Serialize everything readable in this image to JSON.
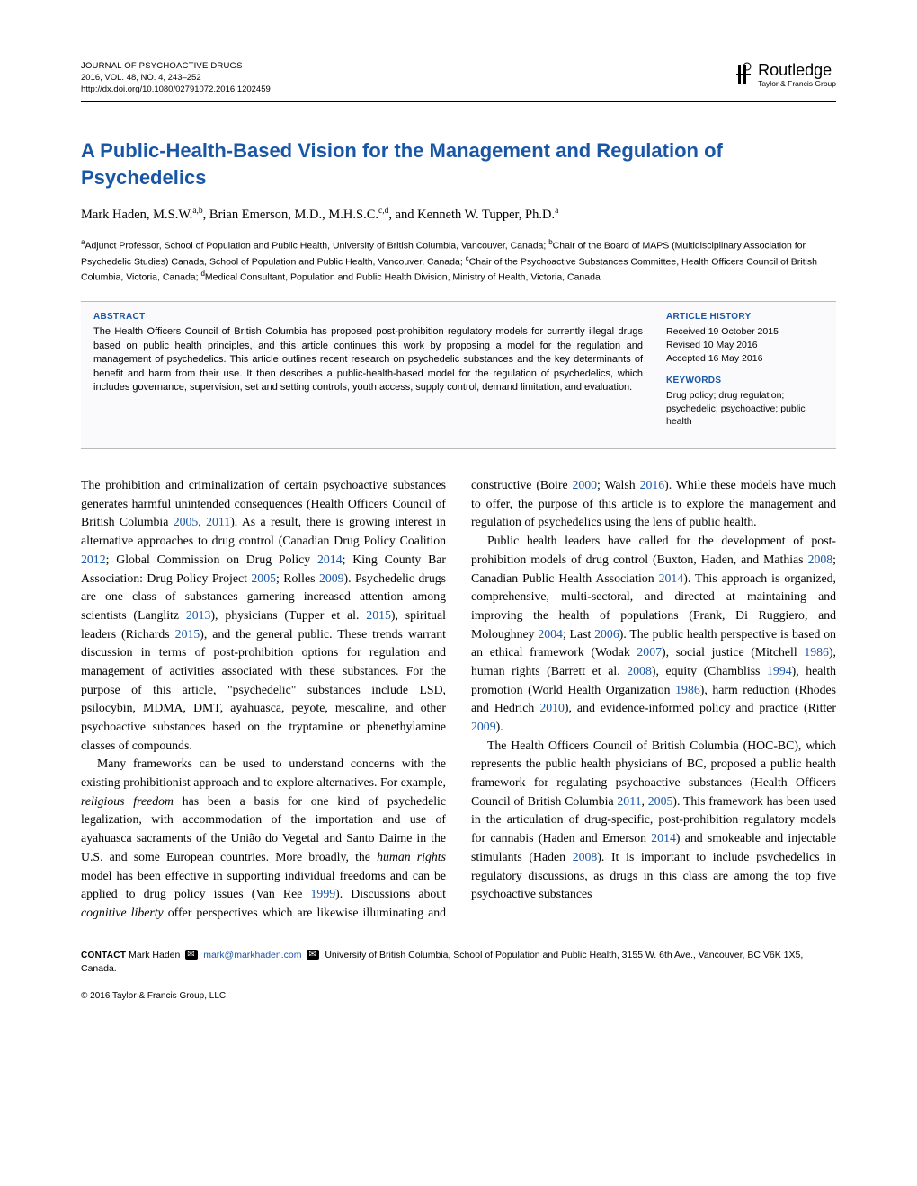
{
  "journal": {
    "name": "JOURNAL OF PSYCHOACTIVE DRUGS",
    "issue": "2016, VOL. 48, NO. 4, 243–252",
    "doi": "http://dx.doi.org/10.1080/02791072.2016.1202459"
  },
  "publisher": {
    "name": "Routledge",
    "tagline": "Taylor & Francis Group"
  },
  "title": "A Public-Health-Based Vision for the Management and Regulation of Psychedelics",
  "authors_html": "Mark Haden, M.S.W.<span class='sup'>a,b</span>, Brian Emerson, M.D., M.H.S.C.<span class='sup'>c,d</span>, and Kenneth W. Tupper, Ph.D.<span class='sup'>a</span>",
  "affiliations_html": "<span class='sup'>a</span>Adjunct Professor, School of Population and Public Health, University of British Columbia, Vancouver, Canada; <span class='sup'>b</span>Chair of the Board of MAPS (Multidisciplinary Association for Psychedelic Studies) Canada, School of Population and Public Health, Vancouver, Canada; <span class='sup'>c</span>Chair of the Psychoactive Substances Committee, Health Officers Council of British Columbia, Victoria, Canada; <span class='sup'>d</span>Medical Consultant, Population and Public Health Division, Ministry of Health, Victoria, Canada",
  "abstract": {
    "heading": "ABSTRACT",
    "text": "The Health Officers Council of British Columbia has proposed post-prohibition regulatory models for currently illegal drugs based on public health principles, and this article continues this work by proposing a model for the regulation and management of psychedelics. This article outlines recent research on psychedelic substances and the key determinants of benefit and harm from their use. It then describes a public-health-based model for the regulation of psychedelics, which includes governance, supervision, set and setting controls, youth access, supply control, demand limitation, and evaluation."
  },
  "history": {
    "heading": "ARTICLE HISTORY",
    "received": "Received 19 October 2015",
    "revised": "Revised 10 May 2016",
    "accepted": "Accepted 16 May 2016"
  },
  "keywords": {
    "heading": "KEYWORDS",
    "text": "Drug policy; drug regulation; psychedelic; psychoactive; public health"
  },
  "body": {
    "p1": "The prohibition and criminalization of certain psychoactive substances generates harmful unintended consequences (Health Officers Council of British Columbia <span class='link'>2005</span>, <span class='link'>2011</span>). As a result, there is growing interest in alternative approaches to drug control (Canadian Drug Policy Coalition <span class='link'>2012</span>; Global Commission on Drug Policy <span class='link'>2014</span>; King County Bar Association: Drug Policy Project <span class='link'>2005</span>; Rolles <span class='link'>2009</span>). Psychedelic drugs are one class of substances garnering increased attention among scientists (Langlitz <span class='link'>2013</span>), physicians (Tupper et al. <span class='link'>2015</span>), spiritual leaders (Richards <span class='link'>2015</span>), and the general public. These trends warrant discussion in terms of post-prohibition options for regulation and management of activities associated with these substances. For the purpose of this article, \"psychedelic\" substances include LSD, psilocybin, MDMA, DMT, ayahuasca, peyote, mescaline, and other psychoactive substances based on the tryptamine or phenethylamine classes of compounds.",
    "p2": "Many frameworks can be used to understand concerns with the existing prohibitionist approach and to explore alternatives. For example, <span class='ital'>religious freedom</span> has been a basis for one kind of psychedelic legalization, with accommodation of the importation and use of ayahuasca sacraments of the União do Vegetal and Santo Daime in the U.S. and some European countries. More broadly, the <span class='ital'>human rights</span> model has been effective in supporting individual freedoms and can be applied to drug policy issues (Van Ree <span class='link'>1999</span>). Discussions about <span class='ital'>cognitive liberty</span> offer perspectives which are likewise illuminating and constructive (Boire <span class='link'>2000</span>; Walsh <span class='link'>2016</span>). While these models have much to offer, the purpose of this article is to explore the management and regulation of psychedelics using the lens of public health.",
    "p3": "Public health leaders have called for the development of post-prohibition models of drug control (Buxton, Haden, and Mathias <span class='link'>2008</span>; Canadian Public Health Association <span class='link'>2014</span>). This approach is organized, comprehensive, multi-sectoral, and directed at maintaining and improving the health of populations (Frank, Di Ruggiero, and Moloughney <span class='link'>2004</span>; Last <span class='link'>2006</span>). The public health perspective is based on an ethical framework (Wodak <span class='link'>2007</span>), social justice (Mitchell <span class='link'>1986</span>), human rights (Barrett et al. <span class='link'>2008</span>), equity (Chambliss <span class='link'>1994</span>), health promotion (World Health Organization <span class='link'>1986</span>), harm reduction (Rhodes and Hedrich <span class='link'>2010</span>), and evidence-informed policy and practice (Ritter <span class='link'>2009</span>).",
    "p4": "The Health Officers Council of British Columbia (HOC-BC), which represents the public health physicians of BC, proposed a public health framework for regulating psychoactive substances (Health Officers Council of British Columbia <span class='link'>2011</span>, <span class='link'>2005</span>). This framework has been used in the articulation of drug-specific, post-prohibition regulatory models for cannabis (Haden and Emerson <span class='link'>2014</span>) and smokeable and injectable stimulants (Haden <span class='link'>2008</span>). It is important to include psychedelics in regulatory discussions, as drugs in this class are among the top five psychoactive substances"
  },
  "contact": {
    "label": "CONTACT",
    "name": "Mark Haden",
    "email": "mark@markhaden.com",
    "address": "University of British Columbia, School of Population and Public Health, 3155 W. 6th Ave., Vancouver, BC V6K 1X5, Canada."
  },
  "copyright": "© 2016 Taylor & Francis Group, LLC",
  "colors": {
    "accent": "#1956a6",
    "rule": "#000000",
    "box_bg": "#fafafc",
    "box_border": "#bbbbbb"
  }
}
